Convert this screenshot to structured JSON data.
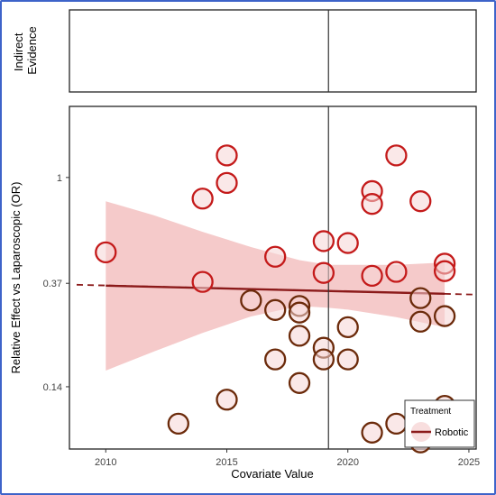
{
  "chart_data": {
    "type": "scatter",
    "panels": [
      {
        "name": "Indirect Evidence",
        "label_lines": [
          "Indirect",
          "Evidence"
        ]
      },
      {
        "name": "main"
      }
    ],
    "xlabel": "Covariate Value",
    "ylabel": "Relative Effect vs Laparoscopic (OR)",
    "x_ticks": [
      2010,
      2015,
      2020,
      2025
    ],
    "y_ticks": [
      {
        "value": 1,
        "label": "1"
      },
      {
        "value": 0.37,
        "label": "0.37"
      },
      {
        "value": 0.14,
        "label": "0.14"
      }
    ],
    "y_scale": "log",
    "xlim": [
      2008.5,
      2025.3
    ],
    "ylim": [
      0.078,
      1.95
    ],
    "reference_x": 2019.2,
    "regression": {
      "start": [
        2008.5,
        0.365
      ],
      "end": [
        2025.3,
        0.333
      ],
      "solid_range": [
        2010,
        2024
      ],
      "line_color": "#8b1a1a",
      "band_color": "#f2b8b8"
    },
    "band": [
      {
        "x": 2010,
        "lo": 0.163,
        "hi": 0.8
      },
      {
        "x": 2012,
        "lo": 0.195,
        "hi": 0.7
      },
      {
        "x": 2014,
        "lo": 0.232,
        "hi": 0.6
      },
      {
        "x": 2016,
        "lo": 0.271,
        "hi": 0.52
      },
      {
        "x": 2018,
        "lo": 0.299,
        "hi": 0.46
      },
      {
        "x": 2019.2,
        "lo": 0.294,
        "hi": 0.44
      },
      {
        "x": 2020,
        "lo": 0.289,
        "hi": 0.44
      },
      {
        "x": 2022,
        "lo": 0.269,
        "hi": 0.44
      },
      {
        "x": 2024,
        "lo": 0.245,
        "hi": 0.45
      }
    ],
    "points": [
      {
        "x": 2010,
        "y": 0.495
      },
      {
        "x": 2013,
        "y": 0.099
      },
      {
        "x": 2014,
        "y": 0.375
      },
      {
        "x": 2014,
        "y": 0.82
      },
      {
        "x": 2015,
        "y": 1.23
      },
      {
        "x": 2015,
        "y": 0.95
      },
      {
        "x": 2015,
        "y": 0.124
      },
      {
        "x": 2016,
        "y": 0.315
      },
      {
        "x": 2017,
        "y": 0.475
      },
      {
        "x": 2017,
        "y": 0.288
      },
      {
        "x": 2017,
        "y": 0.181
      },
      {
        "x": 2018,
        "y": 0.299
      },
      {
        "x": 2018,
        "y": 0.281
      },
      {
        "x": 2018,
        "y": 0.226
      },
      {
        "x": 2018,
        "y": 0.145
      },
      {
        "x": 2019,
        "y": 0.55
      },
      {
        "x": 2019,
        "y": 0.408
      },
      {
        "x": 2019,
        "y": 0.202
      },
      {
        "x": 2019,
        "y": 0.181
      },
      {
        "x": 2020,
        "y": 0.54
      },
      {
        "x": 2020,
        "y": 0.245
      },
      {
        "x": 2020,
        "y": 0.181
      },
      {
        "x": 2021,
        "y": 0.88
      },
      {
        "x": 2021,
        "y": 0.78
      },
      {
        "x": 2021,
        "y": 0.397
      },
      {
        "x": 2021,
        "y": 0.091
      },
      {
        "x": 2022,
        "y": 1.23
      },
      {
        "x": 2022,
        "y": 0.412
      },
      {
        "x": 2022,
        "y": 0.099
      },
      {
        "x": 2023,
        "y": 0.8
      },
      {
        "x": 2023,
        "y": 0.322
      },
      {
        "x": 2023,
        "y": 0.258
      },
      {
        "x": 2023,
        "y": 0.083
      },
      {
        "x": 2024,
        "y": 0.445
      },
      {
        "x": 2024,
        "y": 0.415
      },
      {
        "x": 2024,
        "y": 0.272
      },
      {
        "x": 2024,
        "y": 0.117
      }
    ],
    "point_colors": {
      "upper": "#c41a1a",
      "lower": "#6b2a0a",
      "fill": "#f6d6d6"
    },
    "legend": {
      "title": "Treatment",
      "items": [
        {
          "label": "Robotic",
          "color": "#8b1a1a"
        }
      ],
      "position": "bottom-right"
    },
    "grid": false
  }
}
